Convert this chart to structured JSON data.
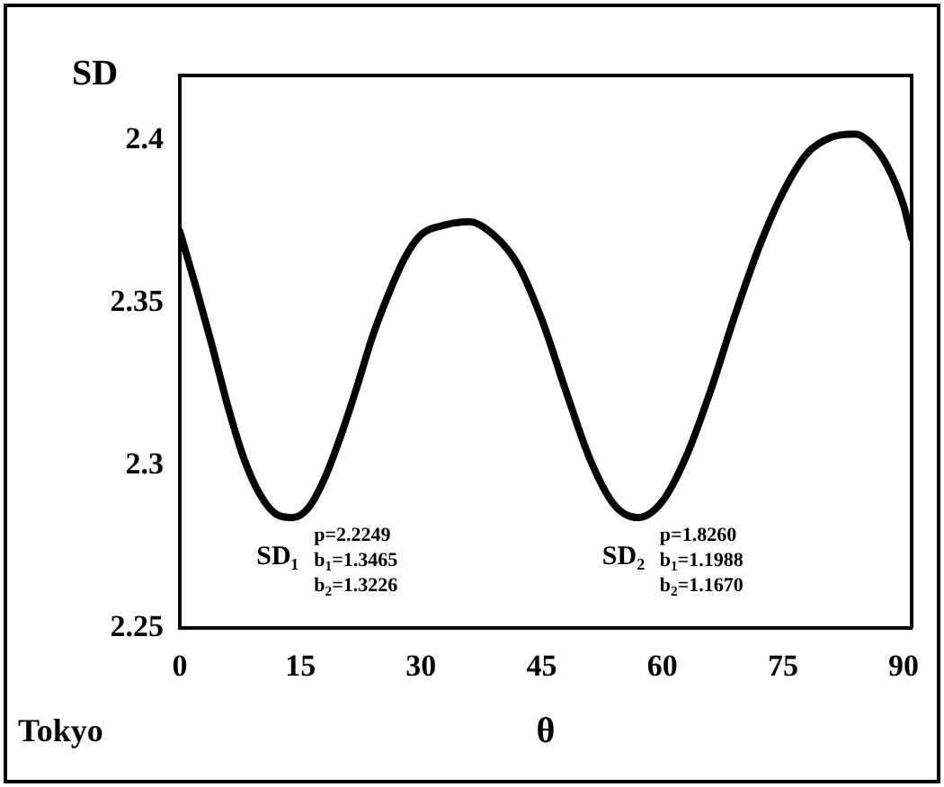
{
  "chart_data": {
    "type": "line",
    "xlabel": "θ",
    "ylabel": "SD",
    "color": "#000000",
    "x": [
      0,
      2,
      4,
      6,
      8,
      10,
      12,
      14,
      16,
      18,
      20,
      22,
      24,
      26,
      28,
      30,
      33,
      36,
      39,
      42,
      45,
      48,
      51,
      54,
      57,
      60,
      63,
      66,
      69,
      72,
      75,
      78,
      81,
      84,
      86,
      88,
      90,
      91
    ],
    "values": [
      2.372,
      2.355,
      2.337,
      2.318,
      2.302,
      2.291,
      2.285,
      2.284,
      2.287,
      2.296,
      2.309,
      2.324,
      2.34,
      2.353,
      2.364,
      2.371,
      2.374,
      2.375,
      2.371,
      2.362,
      2.345,
      2.323,
      2.302,
      2.288,
      2.284,
      2.289,
      2.303,
      2.323,
      2.346,
      2.367,
      2.384,
      2.396,
      2.401,
      2.402,
      2.399,
      2.392,
      2.38,
      2.37
    ],
    "xlim": [
      0,
      91
    ],
    "xticks": [
      0,
      15,
      30,
      45,
      60,
      75,
      90
    ],
    "ylim": [
      2.25,
      2.42
    ],
    "yticks": [
      2.25,
      {
        "value": 2.3,
        "label": "2.3"
      },
      2.35,
      {
        "value": 2.4,
        "label": "2.4"
      }
    ],
    "grid": false,
    "legend": false,
    "marker": "none",
    "line_style": "solid",
    "annotations": [
      "SD₁",
      "p=2.2249",
      "b$_{1}$=1.3465",
      "b$_{2}$=1.3226",
      "SD₂",
      "p=1.8260",
      "b$_{1}$=1.1988",
      "b$_{2}$=1.1670",
      "Tokyo"
    ]
  }
}
